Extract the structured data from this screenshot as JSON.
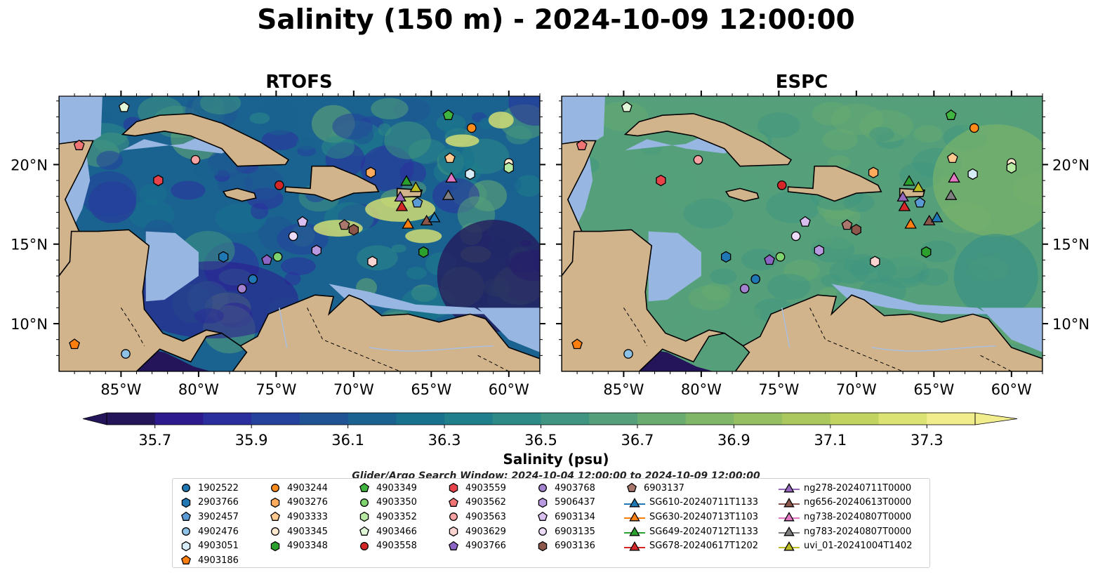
{
  "title": "Salinity (150 m) - 2024-10-09 12:00:00",
  "panels": [
    {
      "title": "RTOFS",
      "theme": "rtofs"
    },
    {
      "title": "ESPC",
      "theme": "espc"
    }
  ],
  "axes": {
    "x_ticks": [
      "85°W",
      "80°W",
      "75°W",
      "70°W",
      "65°W",
      "60°W"
    ],
    "y_ticks": [
      "20°N",
      "15°N",
      "10°N"
    ],
    "lon_range": [
      -89,
      -58
    ],
    "lat_range": [
      7,
      24.3
    ]
  },
  "colorbar": {
    "label": "Salinity (psu)",
    "ticks": [
      "35.7",
      "35.9",
      "36.1",
      "36.3",
      "36.5",
      "36.7",
      "36.9",
      "37.1",
      "37.3"
    ],
    "range": [
      35.6,
      37.4
    ],
    "colors": [
      "#24155a",
      "#2d1a8f",
      "#2b2f9e",
      "#25429c",
      "#1f5394",
      "#1a6390",
      "#18728d",
      "#1f7f8b",
      "#2d8a87",
      "#3f9580",
      "#55a07a",
      "#6aab70",
      "#80b668",
      "#96bf62",
      "#abc85e",
      "#c2d45f",
      "#dbe373",
      "#f1ec8c"
    ],
    "extend": "both"
  },
  "search_window": "Glider/Argo Search Window: 2024-10-04 12:00:00 to 2024-10-09 12:00:00",
  "colors": {
    "land": "#d2b48c",
    "shelf": "#97b6e1",
    "coast": "#000000"
  },
  "legend": [
    {
      "label": "1902522",
      "marker": "circle",
      "color": "#1f77b4"
    },
    {
      "label": "2903766",
      "marker": "hexagon",
      "color": "#1f77b4"
    },
    {
      "label": "3902457",
      "marker": "pentagon",
      "color": "#5b9bd5"
    },
    {
      "label": "4902476",
      "marker": "circle",
      "color": "#8ec1e6"
    },
    {
      "label": "4903051",
      "marker": "hexagon",
      "color": "#d6ecf8"
    },
    {
      "label": "4903186",
      "marker": "pentagon",
      "color": "#ff7f0e"
    },
    {
      "label": "4903244",
      "marker": "circle",
      "color": "#ff8c1a"
    },
    {
      "label": "4903276",
      "marker": "hexagon",
      "color": "#ffab5e"
    },
    {
      "label": "4903333",
      "marker": "pentagon",
      "color": "#ffc98f"
    },
    {
      "label": "4903345",
      "marker": "circle",
      "color": "#ffe9cc"
    },
    {
      "label": "4903348",
      "marker": "hexagon",
      "color": "#2ca02c"
    },
    {
      "label": "4903349",
      "marker": "pentagon",
      "color": "#3fb43f"
    },
    {
      "label": "4903350",
      "marker": "circle",
      "color": "#7ed36e"
    },
    {
      "label": "4903352",
      "marker": "hexagon",
      "color": "#b6eaa3"
    },
    {
      "label": "4903466",
      "marker": "pentagon",
      "color": "#e2f7d8"
    },
    {
      "label": "4903558",
      "marker": "circle",
      "color": "#d62728"
    },
    {
      "label": "4903559",
      "marker": "hexagon",
      "color": "#e8434a"
    },
    {
      "label": "4903562",
      "marker": "pentagon",
      "color": "#f07474"
    },
    {
      "label": "4903563",
      "marker": "circle",
      "color": "#f7a3a3"
    },
    {
      "label": "4903629",
      "marker": "hexagon",
      "color": "#fbd3d0"
    },
    {
      "label": "4903766",
      "marker": "pentagon",
      "color": "#8c64c4"
    },
    {
      "label": "4903768",
      "marker": "circle",
      "color": "#a383cf"
    },
    {
      "label": "5906437",
      "marker": "hexagon",
      "color": "#b99ae0"
    },
    {
      "label": "6903134",
      "marker": "pentagon",
      "color": "#d8bff0"
    },
    {
      "label": "6903135",
      "marker": "circle",
      "color": "#ecdcf8"
    },
    {
      "label": "6903136",
      "marker": "hexagon",
      "color": "#8c564b"
    },
    {
      "label": "6903137",
      "marker": "pentagon",
      "color": "#a9776b"
    },
    {
      "label": "SG610-20240711T1133",
      "marker": "triangle",
      "color": "#1f77b4",
      "line": true
    },
    {
      "label": "SG630-20240713T1103",
      "marker": "triangle",
      "color": "#ff7f0e",
      "line": true
    },
    {
      "label": "SG649-20240712T1133",
      "marker": "triangle",
      "color": "#2ca02c",
      "line": true
    },
    {
      "label": "SG678-20240617T1202",
      "marker": "triangle",
      "color": "#d62728",
      "line": true
    },
    {
      "label": "ng278-20240711T0000",
      "marker": "triangle",
      "color": "#9467bd",
      "line": true
    },
    {
      "label": "ng656-20240613T0000",
      "marker": "triangle",
      "color": "#8c564b",
      "line": true
    },
    {
      "label": "ng738-20240807T0000",
      "marker": "triangle",
      "color": "#e377c2",
      "line": true
    },
    {
      "label": "ng783-20240807T0000",
      "marker": "triangle",
      "color": "#7f7f7f",
      "line": true
    },
    {
      "label": "uvi_01-20241004T1402",
      "marker": "triangle",
      "color": "#bcbd22",
      "line": true
    }
  ],
  "observations": [
    {
      "id": "4903349",
      "lon": -63.9,
      "lat": 23.1
    },
    {
      "id": "4903466",
      "lon": -84.8,
      "lat": 23.6
    },
    {
      "id": "4903244",
      "lon": -62.4,
      "lat": 22.3
    },
    {
      "id": "4903562",
      "lon": -87.7,
      "lat": 21.2
    },
    {
      "id": "4903563",
      "lon": -80.2,
      "lat": 20.3
    },
    {
      "id": "4903333",
      "lon": -63.8,
      "lat": 20.4
    },
    {
      "id": "4903345",
      "lon": -60.0,
      "lat": 20.1
    },
    {
      "id": "4903352",
      "lon": -60.0,
      "lat": 19.8
    },
    {
      "id": "4903276",
      "lon": -68.9,
      "lat": 19.5
    },
    {
      "id": "4903051",
      "lon": -62.5,
      "lat": 19.4
    },
    {
      "id": "4903559",
      "lon": -82.6,
      "lat": 19.0
    },
    {
      "id": "4903558",
      "lon": -74.8,
      "lat": 18.7
    },
    {
      "id": "3902457",
      "lon": -65.9,
      "lat": 17.6
    },
    {
      "id": "6903134",
      "lon": -73.3,
      "lat": 16.4
    },
    {
      "id": "6903137",
      "lon": -70.6,
      "lat": 16.2
    },
    {
      "id": "6903136",
      "lon": -70.0,
      "lat": 15.9
    },
    {
      "id": "6903135",
      "lon": -73.9,
      "lat": 15.5
    },
    {
      "id": "5906437",
      "lon": -72.4,
      "lat": 14.6
    },
    {
      "id": "4903348",
      "lon": -65.5,
      "lat": 14.5
    },
    {
      "id": "2903766",
      "lon": -78.4,
      "lat": 14.2
    },
    {
      "id": "4903350",
      "lon": -74.9,
      "lat": 14.2
    },
    {
      "id": "4903766",
      "lon": -75.6,
      "lat": 14.0
    },
    {
      "id": "4903629",
      "lon": -68.8,
      "lat": 13.9
    },
    {
      "id": "1902522",
      "lon": -76.5,
      "lat": 12.8
    },
    {
      "id": "4903768",
      "lon": -77.2,
      "lat": 12.2
    },
    {
      "id": "4903186",
      "lon": -88.0,
      "lat": 8.7
    },
    {
      "id": "4902476",
      "lon": -84.7,
      "lat": 8.1
    },
    {
      "id": "SG649-20240712T1133",
      "lon": -66.6,
      "lat": 18.9
    },
    {
      "id": "uvi_01-20241004T1402",
      "lon": -66.0,
      "lat": 18.5
    },
    {
      "id": "ng738-20240807T0000",
      "lon": -63.7,
      "lat": 19.1
    },
    {
      "id": "ng278-20240711T0000",
      "lon": -67.0,
      "lat": 17.9
    },
    {
      "id": "ng783-20240807T0000",
      "lon": -63.9,
      "lat": 18.0
    },
    {
      "id": "SG678-20240617T1202",
      "lon": -66.9,
      "lat": 17.3
    },
    {
      "id": "SG630-20240713T1103",
      "lon": -66.5,
      "lat": 16.2
    },
    {
      "id": "ng656-20240613T0000",
      "lon": -65.3,
      "lat": 16.4
    },
    {
      "id": "SG610-20240711T1133",
      "lon": -64.8,
      "lat": 16.6
    }
  ]
}
